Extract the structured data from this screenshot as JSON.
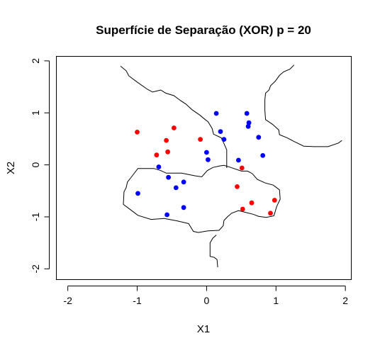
{
  "chart_data": {
    "type": "scatter",
    "title": "Superfície de Separação (XOR) p = 20",
    "xlabel": "X1",
    "ylabel": "X2",
    "xlim": [
      -2.16,
      2.08
    ],
    "ylim": [
      -2.2,
      2.08
    ],
    "x_ticks": [
      -2,
      -1,
      0,
      1,
      2
    ],
    "y_ticks": [
      -2,
      -1,
      0,
      1,
      2
    ],
    "x_tick_labels": [
      "-2",
      "-1",
      "0",
      "1",
      "2"
    ],
    "y_tick_labels": [
      "-2",
      "-1",
      "0",
      "1",
      "2"
    ],
    "grid": false,
    "legend": "none",
    "series": [
      {
        "color": "#ff0000",
        "points": [
          [
            -1.0,
            0.63
          ],
          [
            -0.47,
            0.71
          ],
          [
            -0.58,
            0.47
          ],
          [
            -0.56,
            0.25
          ],
          [
            -0.72,
            0.19
          ],
          [
            -0.09,
            0.49
          ],
          [
            0.51,
            -0.06
          ],
          [
            0.44,
            -0.42
          ],
          [
            0.52,
            -0.85
          ],
          [
            0.65,
            -0.73
          ],
          [
            0.92,
            -0.93
          ],
          [
            0.98,
            -0.68
          ]
        ]
      },
      {
        "color": "#0000ff",
        "points": [
          [
            0.14,
            0.99
          ],
          [
            0.58,
            0.99
          ],
          [
            0.2,
            0.64
          ],
          [
            0.6,
            0.74
          ],
          [
            0.61,
            0.81
          ],
          [
            0.75,
            0.53
          ],
          [
            0.25,
            0.49
          ],
          [
            0.0,
            0.24
          ],
          [
            0.02,
            0.1
          ],
          [
            0.46,
            0.09
          ],
          [
            0.81,
            0.18
          ],
          [
            -0.69,
            -0.04
          ],
          [
            -0.55,
            -0.24
          ],
          [
            -0.44,
            -0.44
          ],
          [
            -0.33,
            -0.33
          ],
          [
            -0.99,
            -0.55
          ],
          [
            -0.33,
            -0.82
          ],
          [
            -0.57,
            -0.96
          ]
        ]
      }
    ],
    "decision_boundary": [
      [
        [
          -1.24,
          1.9
        ],
        [
          -1.16,
          1.81
        ],
        [
          -1.12,
          1.71
        ],
        [
          -1.01,
          1.6
        ],
        [
          -0.86,
          1.46
        ],
        [
          -0.78,
          1.4
        ],
        [
          -0.66,
          1.44
        ],
        [
          -0.59,
          1.38
        ],
        [
          -0.47,
          1.33
        ],
        [
          -0.38,
          1.24
        ],
        [
          -0.3,
          1.17
        ],
        [
          -0.21,
          1.06
        ],
        [
          -0.1,
          0.96
        ],
        [
          -0.02,
          0.87
        ],
        [
          0.02,
          0.83
        ],
        [
          0.08,
          0.7
        ],
        [
          0.1,
          0.59
        ],
        [
          0.21,
          0.52
        ],
        [
          0.24,
          0.44
        ],
        [
          0.29,
          0.29
        ],
        [
          0.29,
          0.18
        ],
        [
          0.29,
          0.07
        ],
        [
          0.29,
          -0.01
        ],
        [
          0.29,
          -0.06
        ]
      ],
      [
        [
          -1.07,
          -0.21
        ],
        [
          -0.99,
          -0.07
        ],
        [
          -0.76,
          -0.07
        ],
        [
          -0.66,
          -0.11
        ],
        [
          -0.58,
          -0.16
        ],
        [
          -0.36,
          -0.16
        ],
        [
          -0.17,
          -0.21
        ],
        [
          -0.07,
          -0.23
        ],
        [
          0.01,
          -0.11
        ],
        [
          0.09,
          -0.05
        ],
        [
          0.19,
          -0.02
        ],
        [
          0.25,
          -0.01
        ],
        [
          0.35,
          -0.05
        ],
        [
          0.5,
          -0.12
        ],
        [
          0.59,
          -0.12
        ],
        [
          0.66,
          -0.17
        ],
        [
          0.73,
          -0.28
        ],
        [
          0.85,
          -0.35
        ],
        [
          0.96,
          -0.39
        ],
        [
          1.05,
          -0.48
        ],
        [
          1.06,
          -0.66
        ],
        [
          1.01,
          -0.8
        ],
        [
          0.97,
          -0.98
        ],
        [
          0.86,
          -1.01
        ],
        [
          0.75,
          -0.99
        ],
        [
          0.67,
          -0.95
        ],
        [
          0.58,
          -0.92
        ],
        [
          0.46,
          -0.88
        ],
        [
          0.36,
          -0.93
        ],
        [
          0.3,
          -1.0
        ],
        [
          0.25,
          -1.07
        ],
        [
          0.24,
          -1.17
        ],
        [
          0.18,
          -1.26
        ],
        [
          0.02,
          -1.27
        ],
        [
          -0.12,
          -1.3
        ],
        [
          -0.19,
          -1.28
        ],
        [
          -0.26,
          -1.13
        ],
        [
          -0.42,
          -1.08
        ],
        [
          -0.61,
          -1.03
        ],
        [
          -0.8,
          -1.05
        ],
        [
          -0.99,
          -0.97
        ],
        [
          -1.12,
          -0.84
        ],
        [
          -1.2,
          -0.76
        ],
        [
          -1.19,
          -0.52
        ],
        [
          -1.16,
          -0.44
        ],
        [
          -1.14,
          -0.33
        ],
        [
          -1.07,
          -0.21
        ]
      ],
      [
        [
          0.14,
          -1.35
        ],
        [
          0.09,
          -1.41
        ],
        [
          0.05,
          -1.5
        ],
        [
          0.05,
          -1.68
        ],
        [
          0.05,
          -1.76
        ],
        [
          0.11,
          -1.78
        ],
        [
          0.15,
          -1.82
        ],
        [
          0.16,
          -1.97
        ]
      ],
      [
        [
          1.26,
          1.92
        ],
        [
          1.2,
          1.84
        ],
        [
          1.11,
          1.79
        ],
        [
          1.05,
          1.72
        ],
        [
          0.99,
          1.61
        ],
        [
          0.92,
          1.52
        ],
        [
          0.9,
          1.44
        ],
        [
          0.85,
          1.38
        ],
        [
          0.84,
          1.25
        ],
        [
          0.84,
          1.05
        ],
        [
          0.85,
          0.87
        ],
        [
          0.95,
          0.78
        ],
        [
          1.04,
          0.67
        ],
        [
          1.05,
          0.58
        ],
        [
          1.16,
          0.52
        ],
        [
          1.26,
          0.45
        ],
        [
          1.4,
          0.36
        ],
        [
          1.55,
          0.35
        ],
        [
          1.75,
          0.35
        ],
        [
          1.9,
          0.42
        ],
        [
          1.95,
          0.47
        ]
      ]
    ]
  }
}
